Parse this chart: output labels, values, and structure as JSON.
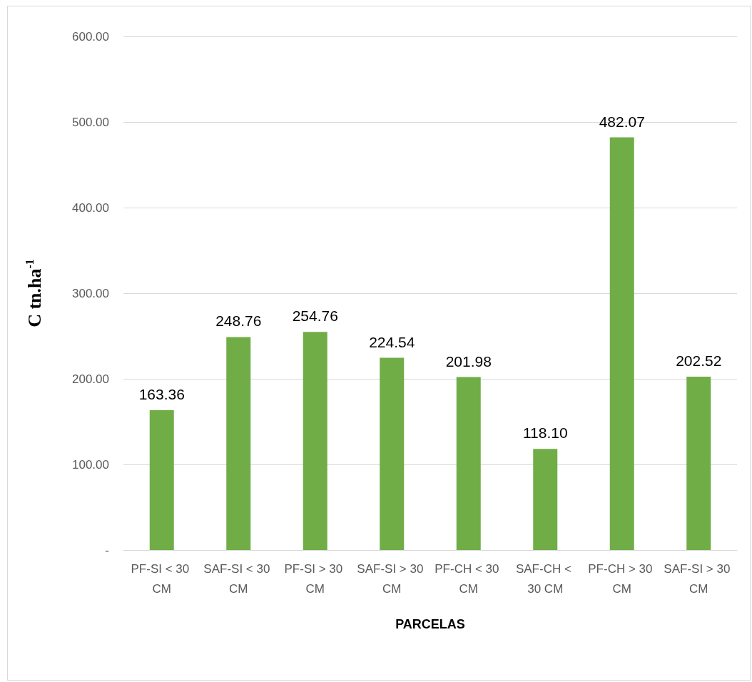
{
  "chart_data": {
    "type": "bar",
    "xlabel": "PARCELAS",
    "ylabel": "C tn.ha$^{-1}$",
    "categories": [
      "PF-SI < 30 CM",
      "SAF-SI < 30 CM",
      "PF-SI > 30 CM",
      "SAF-SI > 30 CM",
      "PF-CH < 30 CM",
      "SAF-CH < 30 CM",
      "PF-CH > 30 CM",
      "SAF-SI > 30 CM"
    ],
    "values": [
      163.36,
      248.76,
      254.76,
      224.54,
      201.98,
      118.1,
      482.07,
      202.52
    ],
    "value_labels": [
      "163.36",
      "248.76",
      "254.76",
      "224.54",
      "201.98",
      "118.10",
      "482.07",
      "202.52"
    ],
    "color": "#70ad47",
    "ylim": [
      0,
      600
    ],
    "yticks": [
      {
        "value": 0,
        "label": "-"
      },
      {
        "value": 100,
        "label": "100.00"
      },
      {
        "value": 200,
        "label": "200.00"
      },
      {
        "value": 300,
        "label": "300.00"
      },
      {
        "value": 400,
        "label": "400.00"
      },
      {
        "value": 500,
        "label": "500.00"
      },
      {
        "value": 600,
        "label": "600.00"
      }
    ],
    "grid": "y"
  }
}
